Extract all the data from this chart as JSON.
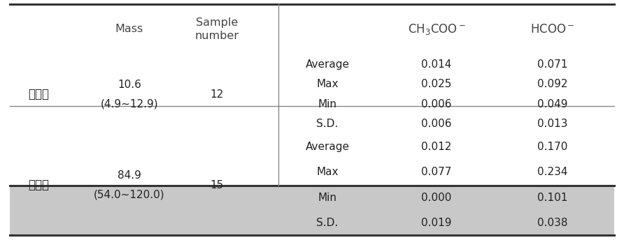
{
  "header_bg_color": "#c8c8c8",
  "header_text_color": "#444444",
  "body_text_color": "#222222",
  "body_bg_color": "#ffffff",
  "thick_line_color": "#333333",
  "thin_line_color": "#888888",
  "row1_label": "저농도",
  "row1_mass": "10.6",
  "row1_mass_range": "(4.9~12.9)",
  "row1_n": "12",
  "row1_stats": [
    "Average",
    "Max",
    "Min",
    "S.D."
  ],
  "row1_ch3coo": [
    "0.014",
    "0.025",
    "0.006",
    "0.006"
  ],
  "row1_hcoo": [
    "0.071",
    "0.092",
    "0.049",
    "0.013"
  ],
  "row2_label": "고농도",
  "row2_mass": "84.9",
  "row2_mass_range": "(54.0~120.0)",
  "row2_n": "15",
  "row2_stats": [
    "Average",
    "Max",
    "Min",
    "S.D."
  ],
  "row2_ch3coo": [
    "0.012",
    "0.077",
    "0.000",
    "0.019"
  ],
  "row2_hcoo": [
    "0.170",
    "0.234",
    "0.101",
    "0.038"
  ],
  "figsize": [
    8.92,
    3.44
  ],
  "dpi": 100
}
